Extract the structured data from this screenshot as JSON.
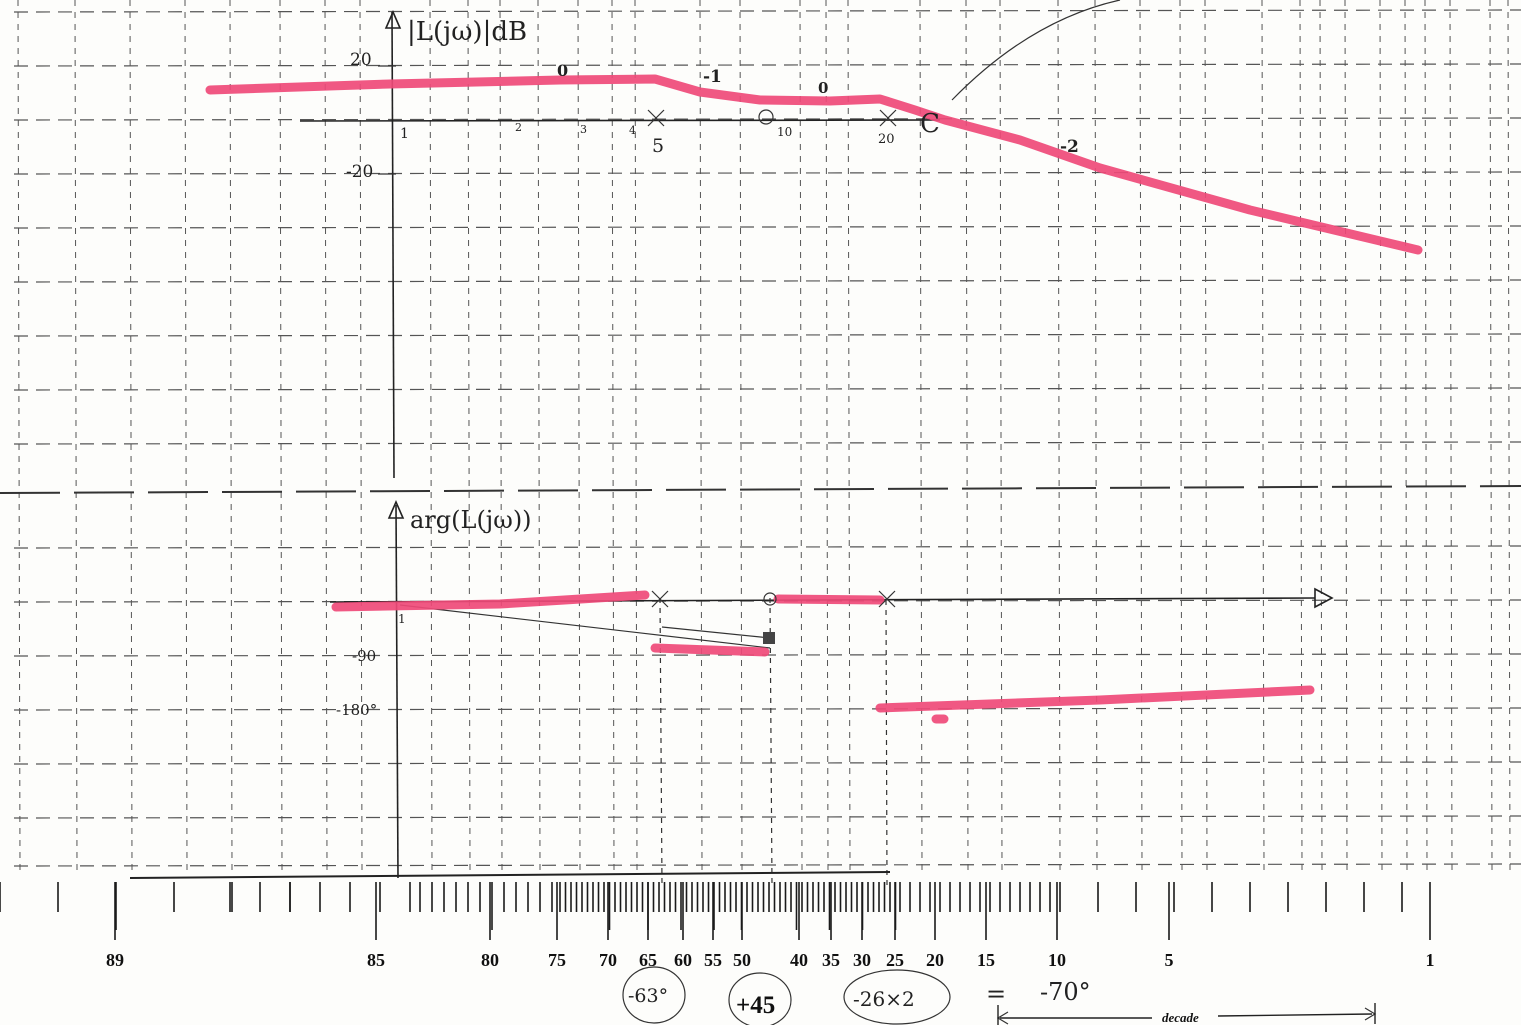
{
  "magnitude_plot": {
    "title": "|L(jω)|dB",
    "y_ticks": [
      "20",
      "-20"
    ],
    "x_ticks": [
      "1",
      "2",
      "3",
      "4",
      "5",
      "10",
      "20"
    ],
    "slope_labels": [
      "0",
      "-1",
      "0",
      "-2"
    ],
    "breakpoints": [
      {
        "freq": 5,
        "type": "pole",
        "symbol": "×"
      },
      {
        "freq": 10,
        "type": "zero",
        "symbol": "○"
      },
      {
        "freq": 20,
        "type": "pole",
        "symbol": "×"
      }
    ],
    "crossover_mark": "C"
  },
  "phase_plot": {
    "title": "arg(L(jω))",
    "x_tick": "1",
    "y_ticks": [
      "-90",
      "-180°"
    ]
  },
  "protractor_scale": {
    "labels": [
      "89",
      "85",
      "80",
      "75",
      "70",
      "65",
      "60",
      "55",
      "50",
      "40",
      "35",
      "30",
      "25",
      "20",
      "15",
      "10",
      "5",
      "1"
    ]
  },
  "annotations": {
    "circled_values": [
      "-63°",
      "+45",
      "-26×2"
    ],
    "equals": "=",
    "result": "-70°",
    "decade_label": "decade"
  },
  "colors": {
    "highlight": "#ef4a78",
    "ink": "#222222"
  }
}
